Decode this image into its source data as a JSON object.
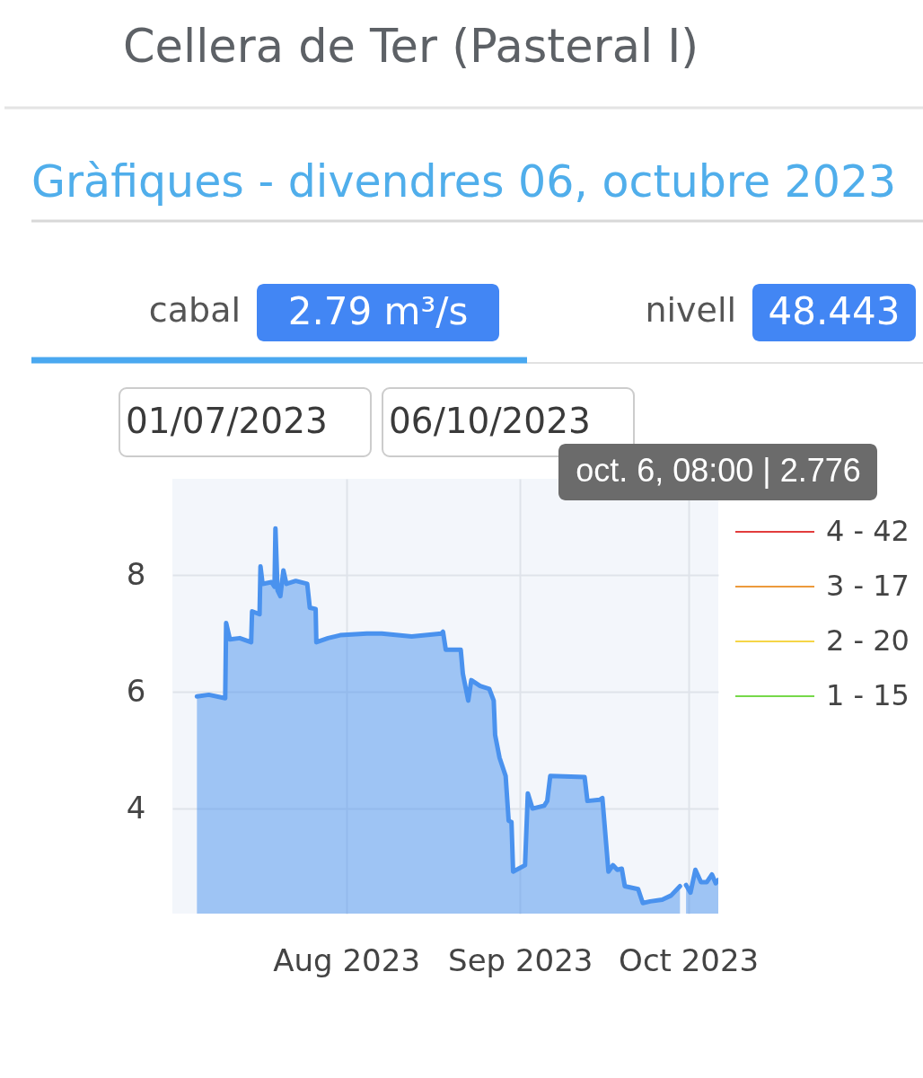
{
  "chart_data": {
    "type": "area",
    "title": "Cellera de Ter (Pasteral I)",
    "subtitle": "Gràfiques - divendres 06, octubre 2023",
    "annotations": [
      "cabal",
      "2.79 m³/s",
      "nivell",
      "48.443",
      "01/07/2023",
      "06/10/2023",
      "oct. 6, 08:00 | 2.776"
    ],
    "x": [
      "2023-07-05T09:00",
      "2023-07-07T12:00",
      "2023-07-10T10:00",
      "2023-07-10T14:00",
      "2023-07-11T06:00",
      "2023-07-13T00:00",
      "2023-07-15T01:00",
      "2023-07-15T05:00",
      "2023-07-16T13:00",
      "2023-07-16T17:00",
      "2023-07-17T02:00",
      "2023-07-18T16:00",
      "2023-07-19T05:00",
      "2023-07-19T09:00",
      "2023-07-19T18:00",
      "2023-07-20T06:00",
      "2023-07-20T19:00",
      "2023-07-21T08:00",
      "2023-07-23T00:00",
      "2023-07-25T01:00",
      "2023-07-25T12:00",
      "2023-07-26T13:00",
      "2023-07-26T16:00",
      "2023-07-28T18:00",
      "2023-07-30T22:00",
      "2023-08-04T16:00",
      "2023-08-07T08:00",
      "2023-08-12T16:00",
      "2023-08-17T23:00",
      "2023-08-18T06:00",
      "2023-08-18T18:00",
      "2023-08-21T10:00",
      "2023-08-21T19:00",
      "2023-08-22T18:00",
      "2023-08-23T07:00",
      "2023-08-24T21:00",
      "2023-08-26T12:00",
      "2023-08-27T07:00",
      "2023-08-27T13:00",
      "2023-08-28T08:00",
      "2023-08-29T10:00",
      "2023-08-29T23:00",
      "2023-08-30T11:00",
      "2023-08-30T18:00",
      "2023-09-01T21:00",
      "2023-09-02T09:00",
      "2023-09-03T05:00",
      "2023-09-05T07:00",
      "2023-09-05T20:00",
      "2023-09-06T09:00",
      "2023-09-12T12:00",
      "2023-09-13T00:00",
      "2023-09-15T04:00",
      "2023-09-15T16:00",
      "2023-09-16T18:00",
      "2023-09-17T13:00",
      "2023-09-18T08:00",
      "2023-09-19T03:00",
      "2023-09-19T16:00",
      "2023-09-22T01:00",
      "2023-09-22T21:00",
      "2023-09-24T05:00",
      "2023-09-26T08:00",
      "2023-09-27T22:00",
      "2023-09-29T12:00",
      "2023-09-30T00:00",
      "2023-09-30T14:00",
      "2023-10-01T09:00",
      "2023-10-02T06:00",
      "2023-10-03T06:00",
      "2023-10-04T07:00",
      "2023-10-05T05:00",
      "2023-10-05T21:00",
      "2023-10-06T08:00"
    ],
    "series": [
      {
        "color": "#4a92ee",
        "values": [
          5.92,
          5.95,
          5.89,
          7.18,
          6.9,
          6.92,
          6.85,
          7.38,
          7.33,
          8.15,
          7.85,
          7.88,
          7.8,
          8.8,
          7.74,
          7.64,
          8.08,
          7.85,
          7.9,
          7.85,
          7.44,
          7.42,
          6.85,
          6.92,
          6.97,
          7.0,
          7.0,
          6.95,
          7.0,
          7.03,
          6.72,
          6.72,
          6.31,
          5.85,
          6.2,
          6.1,
          6.05,
          5.85,
          5.26,
          4.87,
          4.56,
          3.79,
          3.77,
          2.92,
          3.03,
          4.26,
          4.0,
          4.05,
          4.13,
          4.56,
          4.54,
          4.13,
          4.15,
          4.18,
          2.92,
          3.03,
          2.95,
          2.97,
          2.67,
          2.62,
          2.38,
          2.41,
          2.44,
          2.51,
          2.67,
          null,
          2.69,
          2.56,
          2.95,
          2.74,
          2.74,
          2.87,
          2.72,
          2.776
        ]
      },
      {
        "type": "line",
        "name": "4 - 42",
        "color": "#e23d3d",
        "values": [
          null,
          null,
          null,
          null,
          null,
          null,
          null,
          null,
          null,
          null,
          null,
          null,
          null,
          null,
          null,
          null,
          null,
          null,
          null,
          null,
          null,
          null,
          null,
          null,
          null,
          null,
          null,
          null,
          null,
          null,
          null,
          null,
          null,
          null,
          null,
          null,
          null,
          null,
          null,
          null,
          null,
          null,
          null,
          null,
          null,
          null,
          null,
          null,
          null,
          null,
          null,
          null,
          null,
          null,
          null,
          null,
          null,
          null,
          null,
          null,
          null,
          null,
          null,
          null,
          null,
          null,
          null,
          null,
          null,
          null,
          null,
          null,
          null,
          null
        ]
      },
      {
        "type": "line",
        "name": "3 - 17",
        "color": "#ec9a3c",
        "values": [
          null,
          null,
          null,
          null,
          null,
          null,
          null,
          null,
          null,
          null,
          null,
          null,
          null,
          null,
          null,
          null,
          null,
          null,
          null,
          null,
          null,
          null,
          null,
          null,
          null,
          null,
          null,
          null,
          null,
          null,
          null,
          null,
          null,
          null,
          null,
          null,
          null,
          null,
          null,
          null,
          null,
          null,
          null,
          null,
          null,
          null,
          null,
          null,
          null,
          null,
          null,
          null,
          null,
          null,
          null,
          null,
          null,
          null,
          null,
          null,
          null,
          null,
          null,
          null,
          null,
          null,
          null,
          null,
          null,
          null,
          null,
          null,
          null,
          null
        ]
      },
      {
        "type": "line",
        "name": "2 - 20",
        "color": "#f5d547",
        "values": [
          null,
          null,
          null,
          null,
          null,
          null,
          null,
          null,
          null,
          null,
          null,
          null,
          null,
          null,
          null,
          null,
          null,
          null,
          null,
          null,
          null,
          null,
          null,
          null,
          null,
          null,
          null,
          null,
          null,
          null,
          null,
          null,
          null,
          null,
          null,
          null,
          null,
          null,
          null,
          null,
          null,
          null,
          null,
          null,
          null,
          null,
          null,
          null,
          null,
          null,
          null,
          null,
          null,
          null,
          null,
          null,
          null,
          null,
          null,
          null,
          null,
          null,
          null,
          null,
          null,
          null,
          null,
          null,
          null,
          null,
          null,
          null,
          null,
          null
        ]
      },
      {
        "type": "line",
        "name": "1 - 15",
        "color": "#76d84a",
        "values": [
          null,
          null,
          null,
          null,
          null,
          null,
          null,
          null,
          null,
          null,
          null,
          null,
          null,
          null,
          null,
          null,
          null,
          null,
          null,
          null,
          null,
          null,
          null,
          null,
          null,
          null,
          null,
          null,
          null,
          null,
          null,
          null,
          null,
          null,
          null,
          null,
          null,
          null,
          null,
          null,
          null,
          null,
          null,
          null,
          null,
          null,
          null,
          null,
          null,
          null,
          null,
          null,
          null,
          null,
          null,
          null,
          null,
          null,
          null,
          null,
          null,
          null,
          null,
          null,
          null,
          null,
          null,
          null,
          null,
          null,
          null,
          null,
          null,
          null
        ]
      }
    ],
    "xlim": [
      "2023-07-01",
      "2023-10-06T08:00"
    ],
    "xticks": [
      {
        "value": "2023-08-01",
        "label": "Aug 2023"
      },
      {
        "value": "2023-09-01",
        "label": "Sep 2023"
      },
      {
        "value": "2023-10-01",
        "label": "Oct 2023"
      }
    ],
    "ylim": [
      2.2,
      9.65
    ],
    "yticks": [
      4,
      6,
      8
    ],
    "grid": true,
    "legend": "right"
  }
}
